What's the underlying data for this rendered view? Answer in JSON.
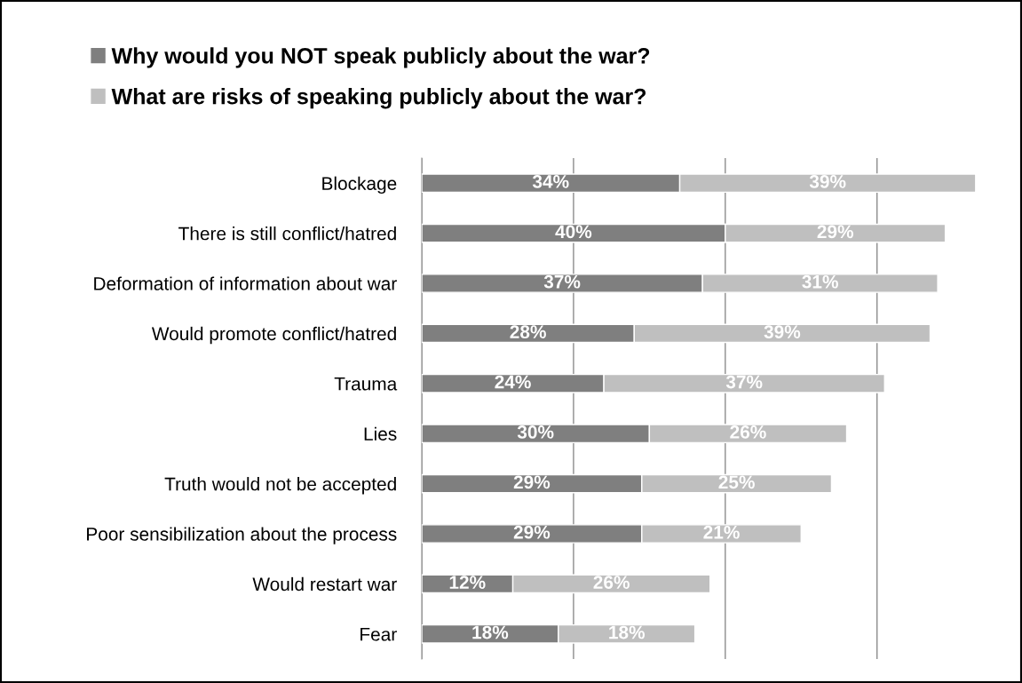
{
  "chart_data": {
    "type": "bar",
    "orientation": "horizontal",
    "stacked": true,
    "grid": "x",
    "legend": "top left",
    "tick_labels": "y",
    "categories": [
      "Blockage",
      "There is still conflict/hatred",
      "Deformation of information about war",
      "Would promote conflict/hatred",
      "Trauma",
      "Lies",
      "Truth would not be accepted",
      "Poor sensibilization about the process",
      "Would restart war",
      "Fear"
    ],
    "series": [
      {
        "name": "Why would you NOT speak publicly about the war?",
        "color": "#7f7f7f",
        "values": [
          34,
          40,
          37,
          28,
          24,
          30,
          29,
          29,
          12,
          18
        ],
        "value_labels": [
          "34%",
          "40%",
          "37%",
          "28%",
          "24%",
          "30%",
          "29%",
          "29%",
          "12%",
          "18%"
        ]
      },
      {
        "name": "What are risks of speaking publicly about the war?",
        "color": "#bfbfbf",
        "values": [
          39,
          29,
          31,
          39,
          37,
          26,
          25,
          21,
          26,
          18
        ],
        "value_labels": [
          "39%",
          "29%",
          "31%",
          "39%",
          "37%",
          "26%",
          "25%",
          "21%",
          "26%",
          "18%"
        ]
      }
    ]
  }
}
